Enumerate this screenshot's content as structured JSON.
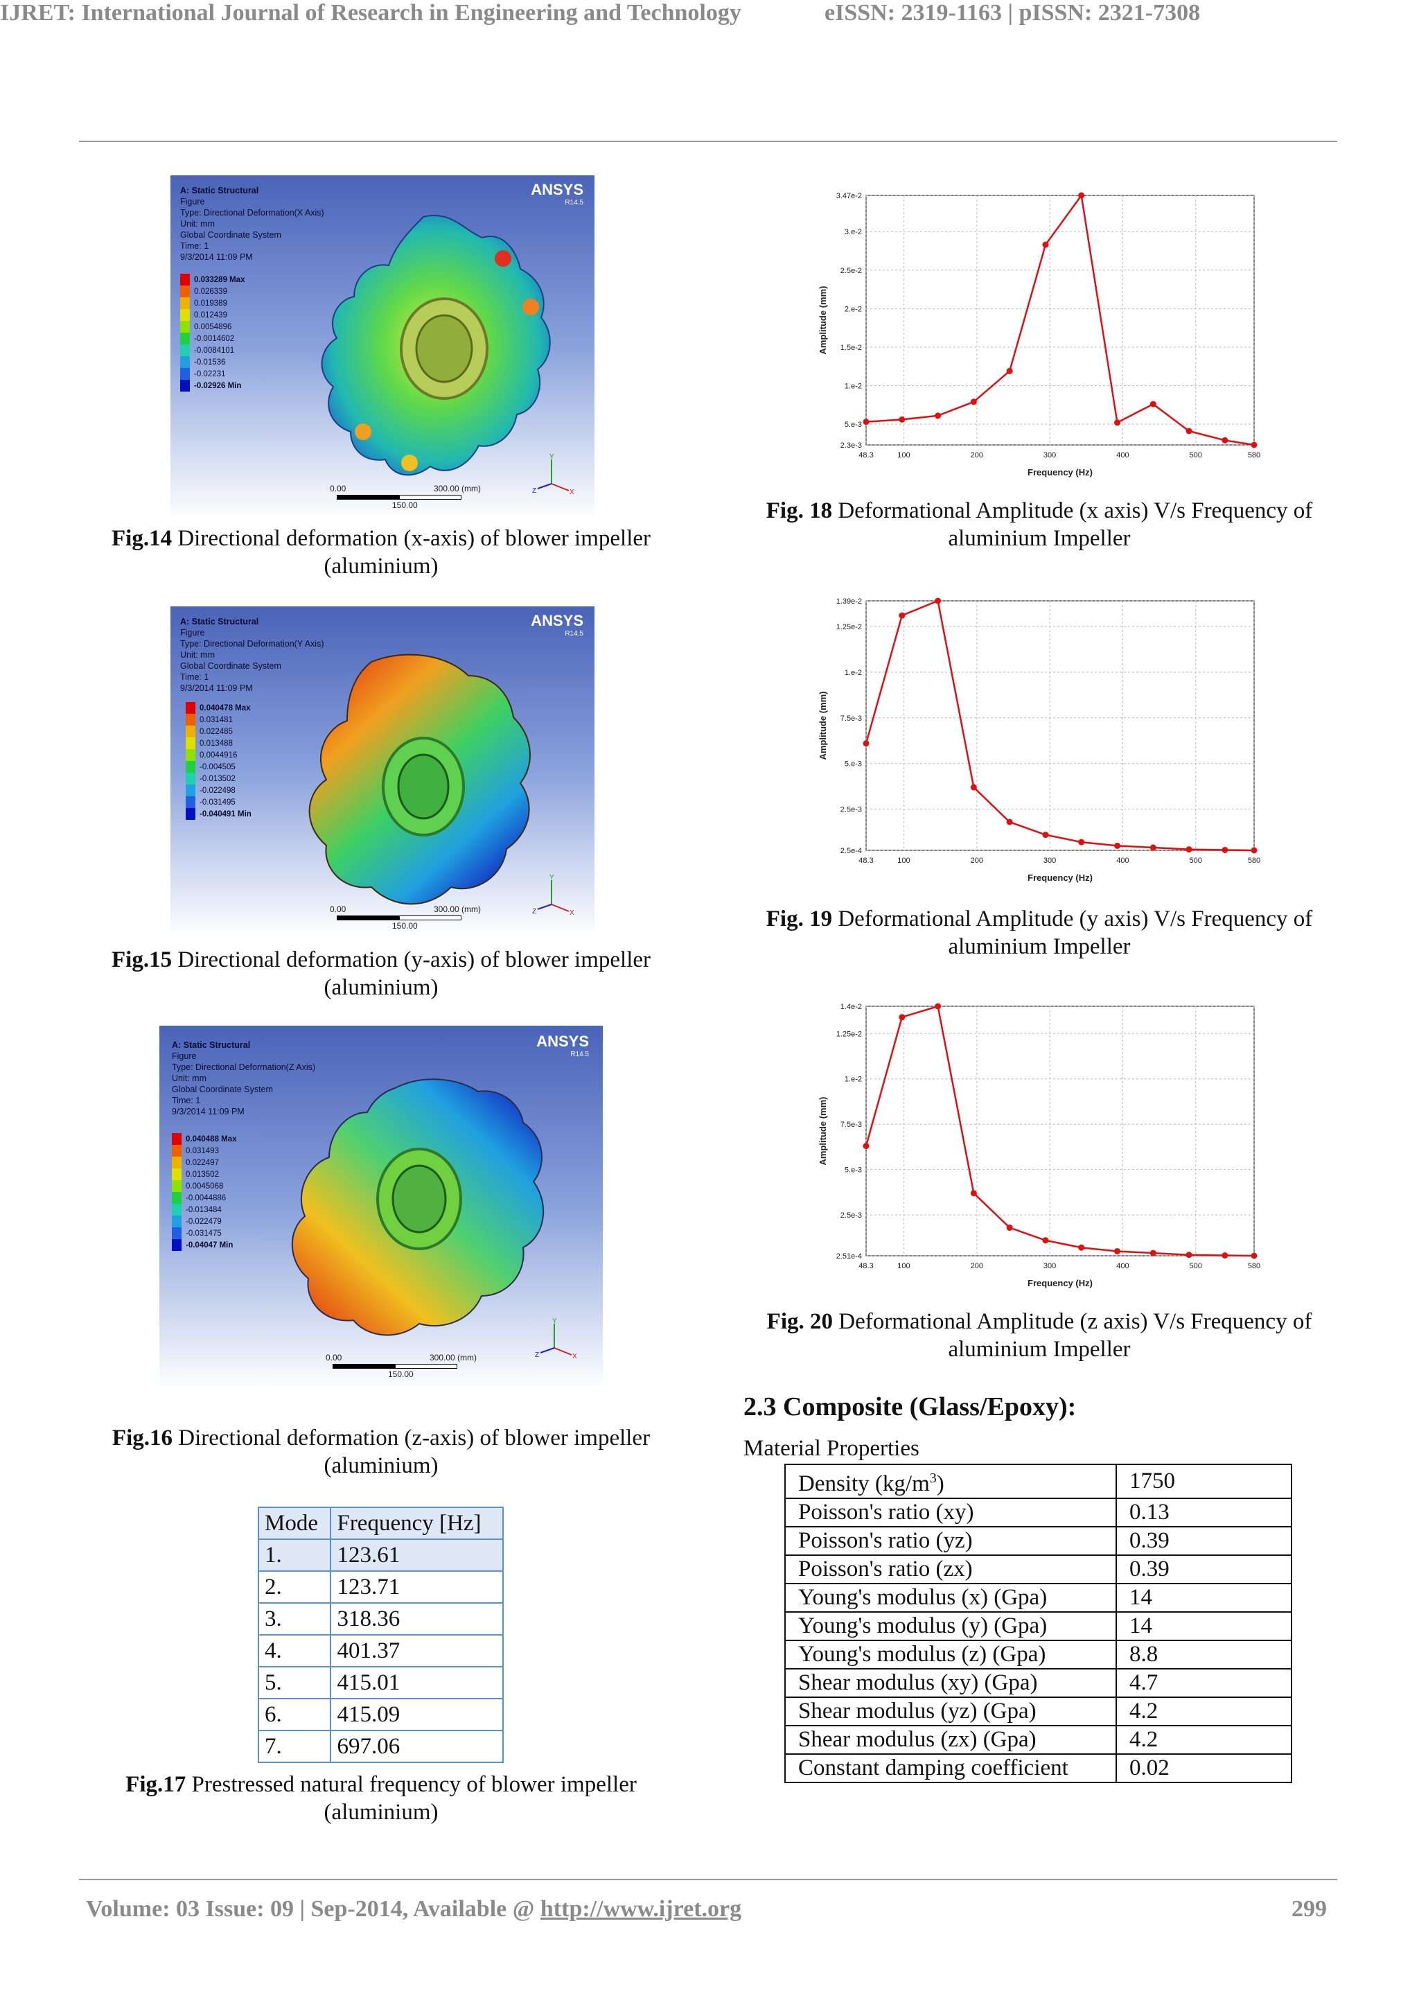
{
  "header": {
    "journal": "IJRET: International Journal of Research in Engineering and Technology",
    "issn": "eISSN: 2319-1163 | pISSN: 2321-7308"
  },
  "figures": {
    "fig14": {
      "panel": {
        "title": "A: Static Structural",
        "line1": "Figure",
        "line2": "Type: Directional Deformation(X Axis)",
        "line3": "Unit: mm",
        "line4": "Global Coordinate System",
        "line5": "Time: 1",
        "line6": "9/3/2014 11:09 PM",
        "logo": "ANSYS",
        "version": "R14.5"
      },
      "legend": [
        "0.033289 Max",
        "0.026339",
        "0.019389",
        "0.012439",
        "0.0054896",
        "-0.0014602",
        "-0.0084101",
        "-0.01536",
        "-0.02231",
        "-0.02926 Min"
      ],
      "scale": {
        "zero": "0.00",
        "max": "300.00 (mm)",
        "mid": "150.00"
      },
      "caption_label": "Fig.14",
      "caption_text": " Directional deformation (x-axis) of blower impeller",
      "caption_line2": "(aluminium)"
    },
    "fig15": {
      "panel": {
        "title": "A: Static Structural",
        "line1": "Figure",
        "line2": "Type: Directional Deformation(Y Axis)",
        "line3": "Unit: mm",
        "line4": "Global Coordinate System",
        "line5": "Time: 1",
        "line6": "9/3/2014 11:09 PM",
        "logo": "ANSYS",
        "version": "R14.5"
      },
      "legend": [
        "0.040478 Max",
        "0.031481",
        "0.022485",
        "0.013488",
        "0.0044916",
        "-0.004505",
        "-0.013502",
        "-0.022498",
        "-0.031495",
        "-0.040491 Min"
      ],
      "scale": {
        "zero": "0.00",
        "max": "300.00 (mm)",
        "mid": "150.00"
      },
      "caption_label": "Fig.15",
      "caption_text": " Directional deformation (y-axis) of blower impeller",
      "caption_line2": "(aluminium)"
    },
    "fig16": {
      "panel": {
        "title": "A: Static Structural",
        "line1": "Figure",
        "line2": "Type: Directional Deformation(Z Axis)",
        "line3": "Unit: mm",
        "line4": "Global Coordinate System",
        "line5": "Time: 1",
        "line6": "9/3/2014 11:09 PM",
        "logo": "ANSYS",
        "version": "R14.5"
      },
      "legend": [
        "0.040488 Max",
        "0.031493",
        "0.022497",
        "0.013502",
        "0.0045068",
        "-0.0044886",
        "-0.013484",
        "-0.022479",
        "-0.031475",
        "-0.04047 Min"
      ],
      "scale": {
        "zero": "0.00",
        "max": "300.00 (mm)",
        "mid": "150.00"
      },
      "caption_label": "Fig.16",
      "caption_text": " Directional deformation (z-axis) of blower impeller",
      "caption_line2": "(aluminium)"
    },
    "fig17": {
      "headers": [
        "Mode",
        "Frequency [Hz]"
      ],
      "rows": [
        [
          "1.",
          "123.61"
        ],
        [
          "2.",
          "123.71"
        ],
        [
          "3.",
          "318.36"
        ],
        [
          "4.",
          "401.37"
        ],
        [
          "5.",
          "415.01"
        ],
        [
          "6.",
          "415.09"
        ],
        [
          "7.",
          "697.06"
        ]
      ],
      "caption_label": "Fig.17",
      "caption_text": " Prestressed natural frequency of blower impeller",
      "caption_line2": "(aluminium)"
    },
    "fig18": {
      "caption_label": "Fig. 18",
      "caption_text": " Deformational Amplitude (x axis) V/s Frequency of",
      "caption_line2": "aluminium Impeller"
    },
    "fig19": {
      "caption_label": "Fig. 19",
      "caption_text": " Deformational Amplitude (y axis) V/s Frequency of",
      "caption_line2": "aluminium Impeller"
    },
    "fig20": {
      "caption_label": "Fig. 20",
      "caption_text": " Deformational Amplitude (z axis) V/s Frequency of",
      "caption_line2": "aluminium Impeller"
    }
  },
  "section": {
    "heading": "2.3 Composite (Glass/Epoxy):",
    "subheading": "Material Properties",
    "density_label": "Density (kg/m",
    "density_sup": "3",
    "density_close": ")",
    "properties": [
      [
        "Poisson's ratio (xy)",
        "0.13"
      ],
      [
        "Poisson's ratio (yz)",
        "0.39"
      ],
      [
        "Poisson's ratio (zx)",
        "0.39"
      ],
      [
        "Young's modulus (x) (Gpa)",
        "14"
      ],
      [
        "Young's modulus (y) (Gpa)",
        "14"
      ],
      [
        "Young's modulus (z) (Gpa)",
        "8.8"
      ],
      [
        "Shear modulus (xy) (Gpa)",
        "4.7"
      ],
      [
        "Shear modulus (yz) (Gpa)",
        "4.2"
      ],
      [
        "Shear modulus (zx) (Gpa)",
        "4.2"
      ],
      [
        "Constant damping coefficient",
        "0.02"
      ]
    ],
    "density_value": "1750"
  },
  "footer": {
    "text": "Volume: 03 Issue: 09 | Sep-2014, Available @ ",
    "link": "http://www.ijret.org",
    "page": "299"
  },
  "chart_data": [
    {
      "type": "line",
      "xlabel": "Frequency (Hz)",
      "ylabel": "Amplitude (mm)",
      "x": [
        48.3,
        97.5,
        146.7,
        195.8,
        245,
        294.2,
        343.3,
        392.5,
        441.7,
        490.8,
        540,
        580
      ],
      "values": [
        0.0053,
        0.0056,
        0.0061,
        0.0079,
        0.0119,
        0.0283,
        0.0347,
        0.0052,
        0.0076,
        0.0041,
        0.0029,
        0.0023
      ],
      "xlim": [
        48.3,
        580
      ],
      "ylim": [
        0.0023,
        0.0347
      ],
      "xticks": [
        "48.3",
        "100",
        "200",
        "300",
        "400",
        "500",
        "580"
      ],
      "xtick_values": [
        48.3,
        100,
        200,
        300,
        400,
        500,
        580
      ],
      "yticks": [
        "2.3e-3",
        "5.e-3",
        "1.e-2",
        "1.5e-2",
        "2.e-2",
        "2.5e-2",
        "3.e-2",
        "3.47e-2"
      ],
      "ytick_values": [
        0.0023,
        0.005,
        0.01,
        0.015,
        0.02,
        0.025,
        0.03,
        0.0347
      ],
      "color": "#e01010"
    },
    {
      "type": "line",
      "xlabel": "Frequency (Hz)",
      "ylabel": "Amplitude (mm)",
      "x": [
        48.3,
        97.5,
        146.7,
        195.8,
        245,
        294.2,
        343.3,
        392.5,
        441.7,
        490.8,
        540,
        580
      ],
      "values": [
        0.0061,
        0.0131,
        0.0139,
        0.0037,
        0.0018,
        0.0011,
        0.0007,
        0.0005,
        0.0004,
        0.0003,
        0.00027,
        0.00025
      ],
      "xlim": [
        48.3,
        580
      ],
      "ylim": [
        0.00025,
        0.0139
      ],
      "xticks": [
        "48.3",
        "100",
        "200",
        "300",
        "400",
        "500",
        "580"
      ],
      "xtick_values": [
        48.3,
        100,
        200,
        300,
        400,
        500,
        580
      ],
      "yticks": [
        "2.5e-4",
        "2.5e-3",
        "5.e-3",
        "7.5e-3",
        "1.e-2",
        "1.25e-2",
        "1.39e-2"
      ],
      "ytick_values": [
        0.00025,
        0.0025,
        0.005,
        0.0075,
        0.01,
        0.0125,
        0.0139
      ],
      "color": "#e01010"
    },
    {
      "type": "line",
      "xlabel": "Frequency (Hz)",
      "ylabel": "Amplitude (mm)",
      "x": [
        48.3,
        97.5,
        146.7,
        195.8,
        245,
        294.2,
        343.3,
        392.5,
        441.7,
        490.8,
        540,
        580
      ],
      "values": [
        0.0063,
        0.0134,
        0.014,
        0.0037,
        0.0018,
        0.0011,
        0.0007,
        0.0005,
        0.0004,
        0.0003,
        0.00027,
        0.000251
      ],
      "xlim": [
        48.3,
        580
      ],
      "ylim": [
        0.000251,
        0.014
      ],
      "xticks": [
        "48.3",
        "100",
        "200",
        "300",
        "400",
        "500",
        "580"
      ],
      "xtick_values": [
        48.3,
        100,
        200,
        300,
        400,
        500,
        580
      ],
      "yticks": [
        "2.51e-4",
        "2.5e-3",
        "5.e-3",
        "7.5e-3",
        "1.e-2",
        "1.25e-2",
        "1.4e-2"
      ],
      "ytick_values": [
        0.000251,
        0.0025,
        0.005,
        0.0075,
        0.01,
        0.0125,
        0.014
      ],
      "color": "#e01010"
    }
  ]
}
